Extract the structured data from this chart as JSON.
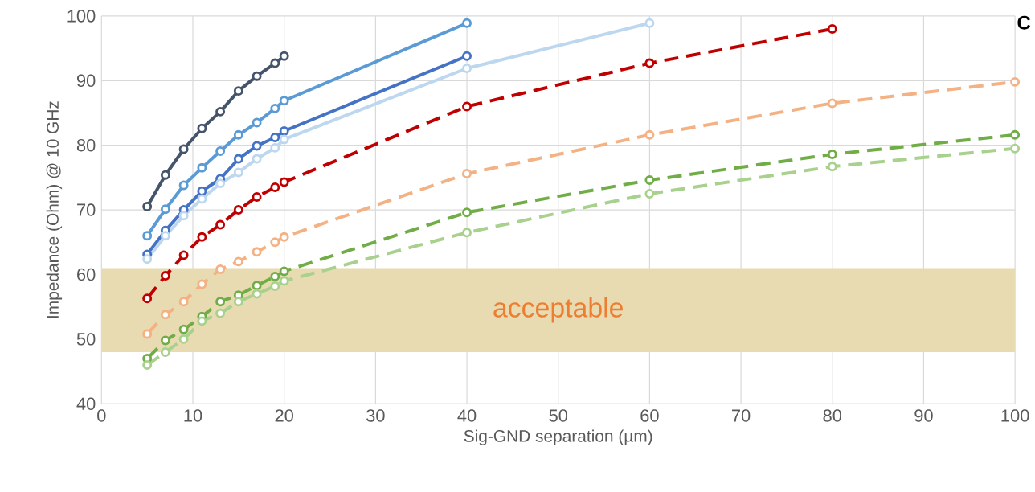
{
  "chart_data": {
    "type": "line",
    "xlabel": "Sig-GND separation (µm)",
    "ylabel": "Impedance (Ohm) @ 10 GHz",
    "x": [
      5,
      7,
      9,
      11,
      13,
      15,
      17,
      19,
      20,
      40,
      60,
      80,
      100
    ],
    "series": [
      {
        "color": "#44546a",
        "line_style": "solid",
        "values": [
          70.5,
          75.4,
          79.4,
          82.6,
          85.2,
          88.4,
          90.7,
          92.7,
          93.8,
          null,
          null,
          null,
          null
        ]
      },
      {
        "color": "#5b9bd5",
        "line_style": "solid",
        "values": [
          66.0,
          70.1,
          73.8,
          76.5,
          79.1,
          81.6,
          83.5,
          85.7,
          86.9,
          98.9,
          null,
          null,
          null
        ]
      },
      {
        "color": "#4472c4",
        "line_style": "solid",
        "values": [
          63.1,
          66.8,
          70.0,
          72.9,
          74.8,
          77.9,
          79.9,
          81.2,
          82.2,
          93.8,
          null,
          null,
          null
        ]
      },
      {
        "color": "#bdd7ee",
        "line_style": "solid",
        "values": [
          62.4,
          66.0,
          69.1,
          71.7,
          74.1,
          75.8,
          77.9,
          79.6,
          80.9,
          91.9,
          98.9,
          null,
          null
        ]
      },
      {
        "color": "#c00000",
        "line_style": "dashed",
        "values": [
          56.3,
          59.8,
          63.0,
          65.8,
          67.7,
          70.0,
          72.0,
          73.5,
          74.3,
          86.0,
          92.7,
          98.0,
          null
        ]
      },
      {
        "color": "#f4b183",
        "line_style": "dashed",
        "values": [
          50.8,
          53.8,
          55.8,
          58.5,
          60.8,
          62.0,
          63.5,
          65.0,
          65.8,
          75.6,
          81.6,
          86.5,
          89.8
        ]
      },
      {
        "color": "#70ad47",
        "line_style": "dashed",
        "values": [
          47.0,
          49.8,
          51.5,
          53.5,
          55.8,
          56.8,
          58.3,
          59.7,
          60.5,
          69.6,
          74.6,
          78.6,
          81.6
        ]
      },
      {
        "color": "#a9d18e",
        "line_style": "dashed",
        "values": [
          46.0,
          48.0,
          50.0,
          52.8,
          54.0,
          55.8,
          57.0,
          58.2,
          59.0,
          66.5,
          72.5,
          76.7,
          79.5
        ]
      }
    ],
    "xlim": [
      0,
      100
    ],
    "ylim": [
      40,
      100
    ],
    "xticks": [
      0,
      10,
      20,
      30,
      40,
      50,
      60,
      70,
      80,
      90,
      100
    ],
    "yticks": [
      40,
      50,
      60,
      70,
      80,
      90,
      100
    ],
    "grid": true,
    "marker": "circle",
    "bands": [
      {
        "axis": "y",
        "from": 48,
        "to": 61,
        "label": "acceptable",
        "color": "#e8dbb2"
      }
    ],
    "annotations": [
      "C"
    ]
  }
}
